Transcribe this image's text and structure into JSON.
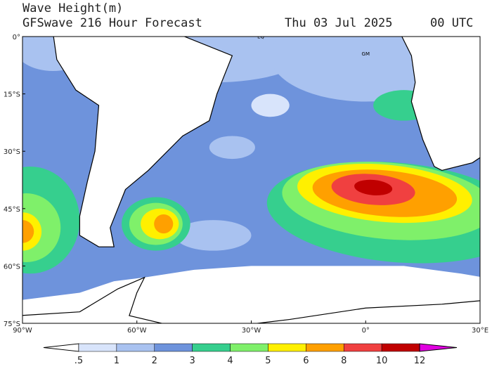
{
  "header": {
    "title": "Wave Height(m)",
    "subtitle": "GFSwave 216 Hour Forecast",
    "date": "Thu 03 Jul 2025",
    "time": "00 UTC"
  },
  "map": {
    "lat_labels": [
      "0°",
      "15°S",
      "30°S",
      "45°S",
      "60°S",
      "75°S"
    ],
    "lon_labels": [
      "90°W",
      "60°W",
      "30°W",
      "0°",
      "30°E"
    ],
    "annotations": [
      "EQ",
      "GM"
    ]
  },
  "colorbar": {
    "labels": [
      ".5",
      "1",
      "2",
      "3",
      "4",
      "5",
      "6",
      "8",
      "10",
      "12"
    ],
    "colors": [
      "#ffffff",
      "#d8e4fb",
      "#a9c2f0",
      "#6e93dc",
      "#36cf8e",
      "#7ff06a",
      "#fff000",
      "#ffa000",
      "#f04040",
      "#c00000",
      "#e000e0"
    ]
  }
}
